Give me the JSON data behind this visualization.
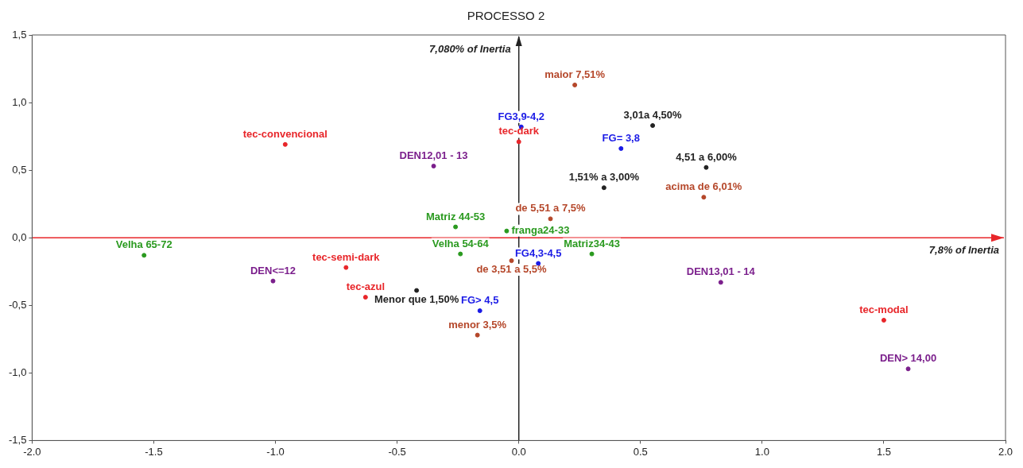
{
  "chart_data": {
    "type": "scatter",
    "title": "PROCESSO 2",
    "marker": "circle",
    "grid": false,
    "xlim": [
      -2.0,
      2.0
    ],
    "xticks": [
      {
        "value": -2,
        "label": "-2.0"
      },
      {
        "value": -1.5,
        "label": "-1.5"
      },
      {
        "value": -1,
        "label": "-1.0"
      },
      {
        "value": -0.5,
        "label": "-0.5"
      },
      {
        "value": 0,
        "label": "0.0"
      },
      {
        "value": 0.5,
        "label": "0.5"
      },
      {
        "value": 1,
        "label": "1.0"
      },
      {
        "value": 1.5,
        "label": "1.5"
      },
      {
        "value": 2,
        "label": "2.0"
      }
    ],
    "ylim": [
      -1.5,
      1.5
    ],
    "yticks": [
      {
        "value": -1.5,
        "label": "-1,5"
      },
      {
        "value": -1,
        "label": "-1,0"
      },
      {
        "value": -0.5,
        "label": "-0,5"
      },
      {
        "value": 0,
        "label": "0,0"
      },
      {
        "value": 0.5,
        "label": "0,5"
      },
      {
        "value": 1,
        "label": "1,0"
      },
      {
        "value": 1.5,
        "label": "1,5"
      }
    ],
    "ref_lines": [
      {
        "axis": "y",
        "value": 0,
        "label": "7,8% of Inertia",
        "color": "#e8262a"
      },
      {
        "axis": "x",
        "value": 0,
        "label": "7,080% of Inertia",
        "color": "#222222"
      }
    ],
    "series": [
      {
        "color": "#e8262a",
        "x": [
          -0.96,
          0.0,
          -0.71,
          -0.63,
          1.5
        ],
        "values": [
          0.69,
          0.71,
          -0.22,
          -0.44,
          -0.61
        ]
      },
      {
        "color": "#7b1f8c",
        "x": [
          -0.35,
          -1.01,
          0.83,
          1.6
        ],
        "values": [
          0.53,
          -0.32,
          -0.33,
          -0.97
        ]
      },
      {
        "color": "#1a1ae6",
        "x": [
          0.01,
          0.42,
          0.08,
          -0.16
        ],
        "values": [
          0.82,
          0.66,
          -0.19,
          -0.54
        ]
      },
      {
        "color": "#222222",
        "x": [
          0.55,
          0.77,
          0.35,
          -0.42
        ],
        "values": [
          0.83,
          0.52,
          0.37,
          -0.39
        ]
      },
      {
        "color": "#b5472a",
        "x": [
          0.23,
          0.76,
          0.13,
          -0.03,
          -0.17
        ],
        "values": [
          1.13,
          0.3,
          0.14,
          -0.17,
          -0.72
        ]
      },
      {
        "color": "#2a9a1f",
        "x": [
          -1.54,
          -0.24,
          -0.26,
          -0.05,
          0.3
        ],
        "values": [
          -0.13,
          -0.12,
          0.08,
          0.05,
          -0.12
        ]
      }
    ],
    "annotations": [
      {
        "text": "tec-convencional",
        "x": -0.96,
        "y": 0.69
      },
      {
        "text": "tec-dark",
        "x": 0.0,
        "y": 0.71
      },
      {
        "text": "tec-semi-dark",
        "x": -0.71,
        "y": -0.22
      },
      {
        "text": "tec-azul",
        "x": -0.63,
        "y": -0.44
      },
      {
        "text": "tec-modal",
        "x": 1.5,
        "y": -0.61
      },
      {
        "text": "DEN12,01 - 13",
        "x": -0.35,
        "y": 0.53
      },
      {
        "text": "DEN<=12",
        "x": -1.01,
        "y": -0.32
      },
      {
        "text": "DEN13,01 - 14",
        "x": 0.83,
        "y": -0.33
      },
      {
        "text": "DEN> 14,00",
        "x": 1.6,
        "y": -0.97
      },
      {
        "text": "FG3,9-4,2",
        "x": 0.01,
        "y": 0.82
      },
      {
        "text": "FG= 3,8",
        "x": 0.42,
        "y": 0.66
      },
      {
        "text": "FG4,3-4,5",
        "x": 0.08,
        "y": -0.19
      },
      {
        "text": "FG> 4,5",
        "x": -0.16,
        "y": -0.54
      },
      {
        "text": "3,01a 4,50%",
        "x": 0.55,
        "y": 0.83
      },
      {
        "text": "4,51 a 6,00%",
        "x": 0.77,
        "y": 0.52
      },
      {
        "text": "1,51% a 3,00%",
        "x": 0.35,
        "y": 0.37
      },
      {
        "text": "Menor que 1,50%",
        "x": -0.42,
        "y": -0.39
      },
      {
        "text": "maior 7,51%",
        "x": 0.23,
        "y": 1.13
      },
      {
        "text": "acima de 6,01%",
        "x": 0.76,
        "y": 0.3
      },
      {
        "text": "de 5,51 a 7,5%",
        "x": 0.13,
        "y": 0.14
      },
      {
        "text": "de 3,51 a 5,5%",
        "x": -0.03,
        "y": -0.17
      },
      {
        "text": "menor 3,5%",
        "x": -0.17,
        "y": -0.72
      },
      {
        "text": "Velha 65-72",
        "x": -1.54,
        "y": -0.13
      },
      {
        "text": "Velha 54-64",
        "x": -0.24,
        "y": -0.12
      },
      {
        "text": "Matriz 44-53",
        "x": -0.26,
        "y": 0.08
      },
      {
        "text": "franga24-33",
        "x": -0.05,
        "y": 0.05
      },
      {
        "text": "Matriz34-43",
        "x": 0.3,
        "y": -0.12
      }
    ]
  }
}
